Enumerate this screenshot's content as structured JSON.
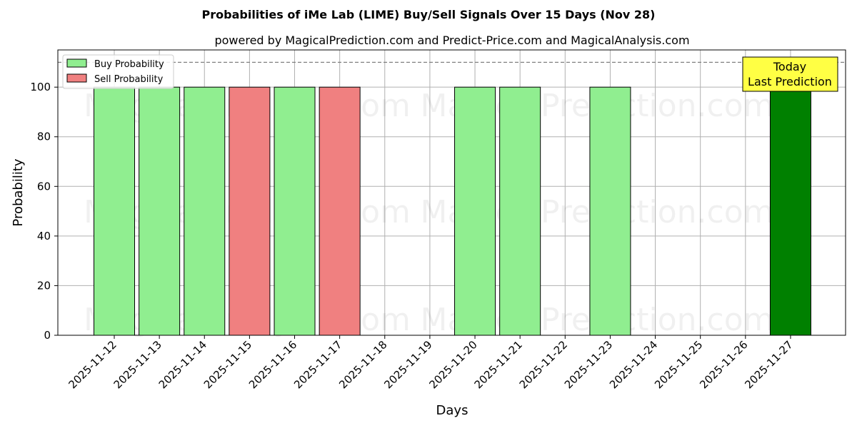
{
  "chart_data": {
    "type": "bar",
    "title": "Probabilities of iMe Lab (LIME) Buy/Sell Signals Over 15 Days (Nov 28)",
    "subtitle": "powered by MagicalPrediction.com and Predict-Price.com and MagicalAnalysis.com",
    "xlabel": "Days",
    "ylabel": "Probability",
    "ylim": [
      0,
      115
    ],
    "yticks": [
      0,
      20,
      40,
      60,
      80,
      100
    ],
    "grid": true,
    "dashed_reference_line": 110,
    "categories": [
      "2025-11-12",
      "2025-11-13",
      "2025-11-14",
      "2025-11-15",
      "2025-11-16",
      "2025-11-17",
      "2025-11-18",
      "2025-11-19",
      "2025-11-20",
      "2025-11-21",
      "2025-11-22",
      "2025-11-23",
      "2025-11-24",
      "2025-11-25",
      "2025-11-26",
      "2025-11-27"
    ],
    "series": [
      {
        "name": "Buy Probability",
        "color": "#90ee90",
        "values": [
          100,
          100,
          100,
          0,
          100,
          0,
          0,
          0,
          100,
          100,
          0,
          100,
          0,
          0,
          0,
          100
        ]
      },
      {
        "name": "Sell Probability",
        "color": "#f08080",
        "values": [
          0,
          0,
          0,
          100,
          0,
          100,
          0,
          0,
          0,
          0,
          0,
          0,
          0,
          0,
          0,
          0
        ]
      }
    ],
    "highlight": {
      "category": "2025-11-27",
      "color": "#008000"
    },
    "legend_position": "top-left",
    "annotation": {
      "line1": "Today",
      "line2": "Last Prediction",
      "position": "top-right",
      "color": "#ffff44"
    },
    "watermarks": [
      "MagicalAnalysis.com",
      "MagicalPrediction.com"
    ]
  }
}
